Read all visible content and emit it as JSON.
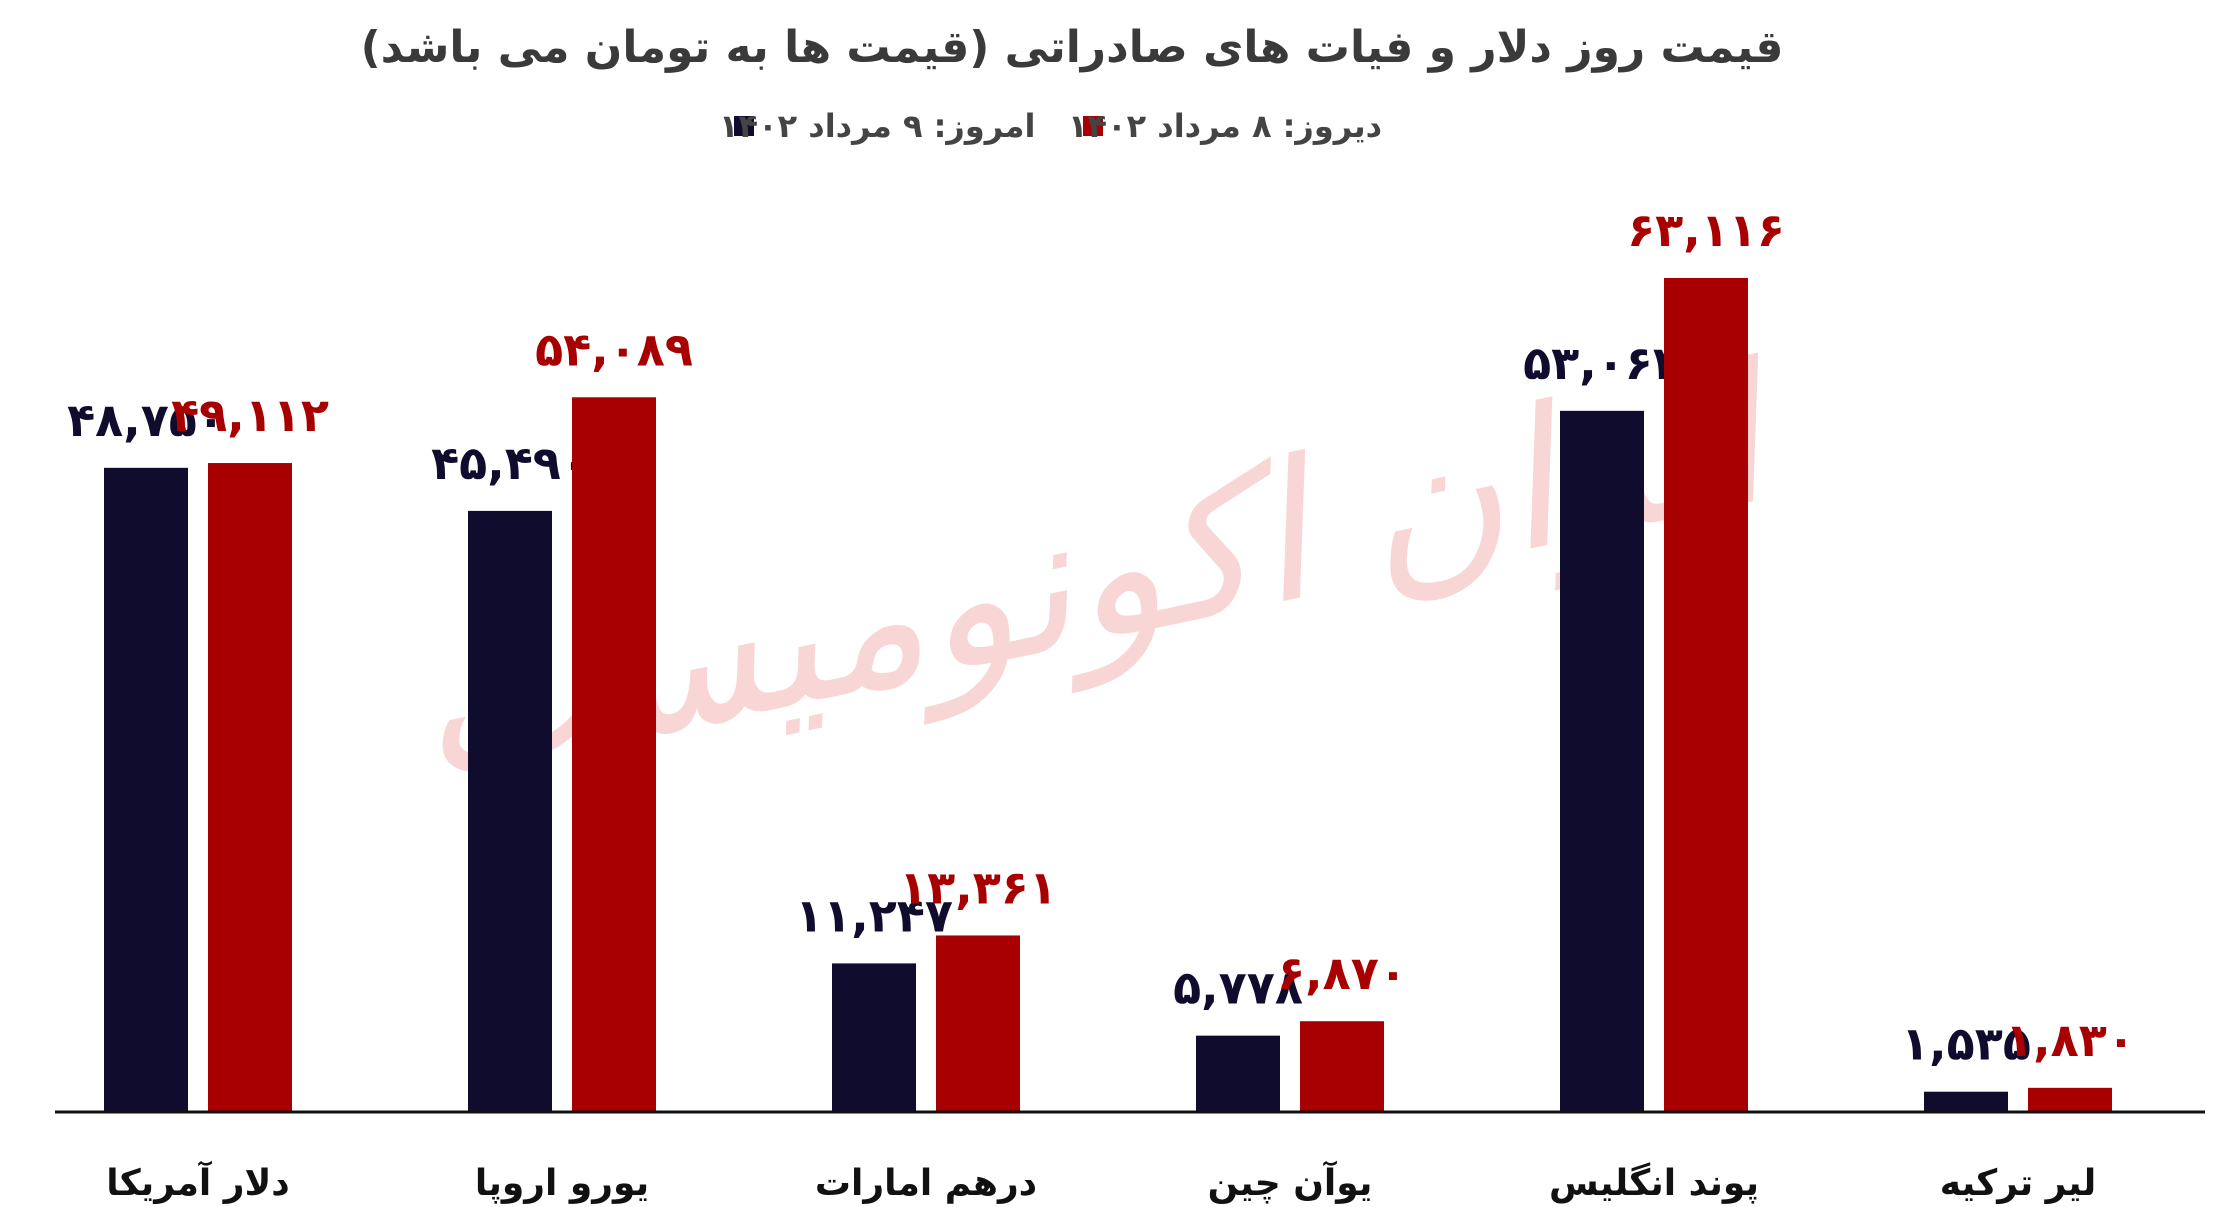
{
  "chart_data": {
    "type": "bar",
    "title": "قیمت روز دلار و فیات های صادراتی (قیمت ها به تومان می باشد)",
    "categories": [
      "دلار آمریکا",
      "یورو اروپا",
      "درهم امارات",
      "یوآن چین",
      "پوند انگلیس",
      "لیر ترکیه"
    ],
    "series": [
      {
        "name": "امروز: ۹ مرداد ۱۴۰۲",
        "color": "#0f0c2e",
        "values": [
          48750,
          45490,
          11247,
          5778,
          53063,
          1535
        ],
        "labels": [
          "۴۸,۷۵۰",
          "۴۵,۴۹۰",
          "۱۱,۲۴۷",
          "۵,۷۷۸",
          "۵۳,۰۶۳",
          "۱,۵۳۵"
        ]
      },
      {
        "name": "دیروز: ۸ مرداد ۱۴۰۲",
        "color": "#a80000",
        "values": [
          49112,
          54089,
          13361,
          6870,
          63116,
          1830
        ],
        "labels": [
          "۴۹,۱۱۲",
          "۵۴,۰۸۹",
          "۱۳,۳۶۱",
          "۶,۸۷۰",
          "۶۳,۱۱۶",
          "۱,۸۳۰"
        ]
      }
    ],
    "ylim": [
      0,
      68000
    ],
    "grid": false,
    "legend_position": "top-center",
    "watermark": "ایران اکونومیست"
  }
}
